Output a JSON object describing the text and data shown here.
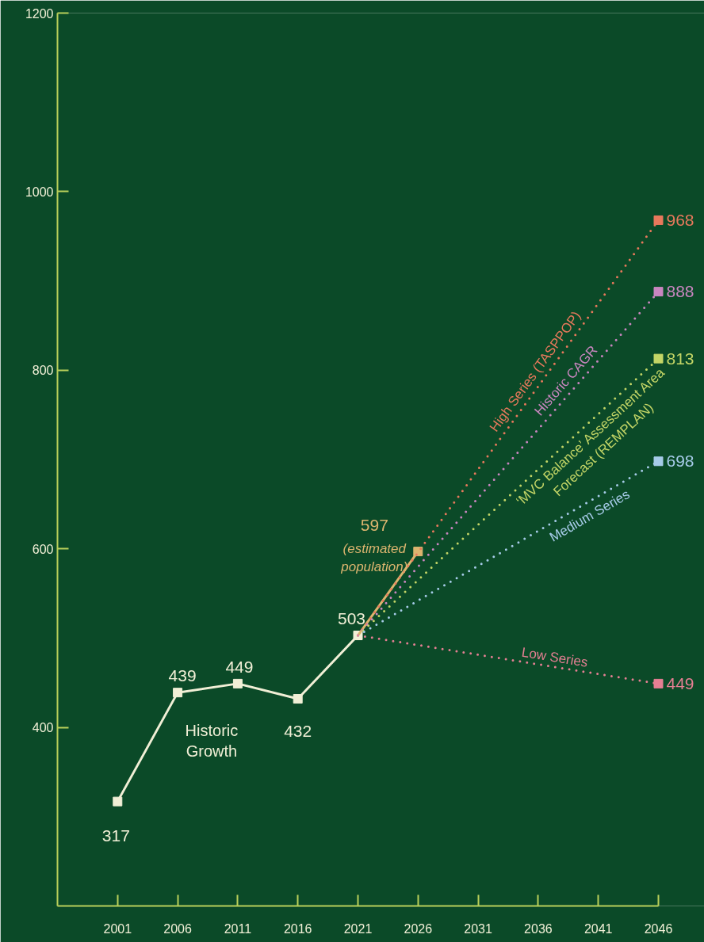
{
  "chart_data": {
    "type": "line",
    "x": [
      2001,
      2006,
      2011,
      2016,
      2021
    ],
    "xlim": [
      1996,
      2046
    ],
    "ylim": [
      200,
      1200
    ],
    "xticks": [
      2001,
      2006,
      2011,
      2016,
      2021,
      2026,
      2031,
      2036,
      2041,
      2046
    ],
    "yticks": [
      400,
      600,
      800,
      1000,
      1200
    ],
    "grid": false,
    "marker": "square",
    "series": [
      {
        "name": "Historic Growth",
        "color": "#f1efd6",
        "line_style": "solid",
        "values": [
          317,
          439,
          449,
          432,
          503
        ],
        "value_labels": [
          "317",
          "439",
          "449",
          "432",
          "503"
        ]
      },
      {
        "color": "#dcb56f",
        "line_style": "solid",
        "x": [
          2021,
          2026
        ],
        "values": [
          503,
          597
        ],
        "value_labels": [
          null,
          "597"
        ]
      },
      {
        "name": "High Series (TASPPOP)",
        "color": "#e8795c",
        "line_style": "dotted",
        "x": [
          2021,
          2046
        ],
        "values": [
          503,
          968
        ],
        "value_labels": [
          null,
          "968"
        ]
      },
      {
        "name": "Historic CAGR",
        "color": "#c986c0",
        "line_style": "dotted",
        "x": [
          2021,
          2046
        ],
        "values": [
          503,
          888
        ],
        "value_labels": [
          null,
          "888"
        ]
      },
      {
        "name": "‘MVC Balance’ Assessment Area\nForecast (REMPLAN)",
        "color": "#c3d566",
        "line_style": "dotted",
        "x": [
          2021,
          2046
        ],
        "values": [
          503,
          813
        ],
        "value_labels": [
          null,
          "813"
        ]
      },
      {
        "name": "Medium Series",
        "color": "#a6cbe8",
        "line_style": "dotted",
        "x": [
          2021,
          2046
        ],
        "values": [
          503,
          698
        ],
        "value_labels": [
          null,
          "698"
        ]
      },
      {
        "name": "Low Series",
        "color": "#e57f93",
        "line_style": "dotted",
        "x": [
          2021,
          2046
        ],
        "values": [
          503,
          449
        ],
        "value_labels": [
          null,
          "449"
        ]
      }
    ],
    "annotations": [
      {
        "text": "(estimated population)",
        "x": 2026,
        "y": 597
      }
    ]
  }
}
